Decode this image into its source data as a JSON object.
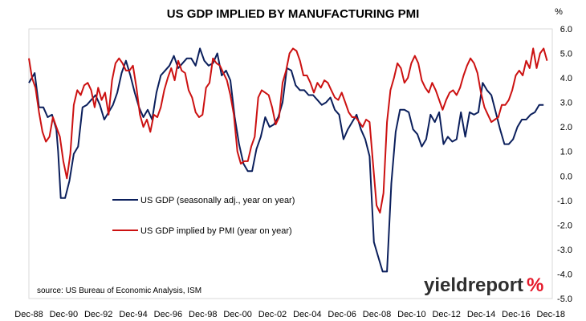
{
  "chart_data": {
    "type": "line",
    "title": "US GDP IMPLIED BY MANUFACTURING PMI",
    "ylabel_unit": "%",
    "ylim": [
      -5.0,
      6.0
    ],
    "yticks": [
      "6.0",
      "5.0",
      "4.0",
      "3.0",
      "2.0",
      "1.0",
      "0.0",
      "-1.0",
      "-2.0",
      "-3.0",
      "-4.0",
      "-5.0"
    ],
    "yticks_values": [
      6,
      5,
      4,
      3,
      2,
      1,
      0,
      -1,
      -2,
      -3,
      -4,
      -5
    ],
    "xlim": [
      1988.92,
      2019.0
    ],
    "xticks": [
      "Dec-88",
      "Dec-90",
      "Dec-92",
      "Dec-94",
      "Dec-96",
      "Dec-98",
      "Dec-00",
      "Dec-02",
      "Dec-04",
      "Dec-06",
      "Dec-08",
      "Dec-10",
      "Dec-12",
      "Dec-14",
      "Dec-16",
      "Dec-18"
    ],
    "xticks_values": [
      1988.92,
      1990.92,
      1992.92,
      1994.92,
      1996.92,
      1998.92,
      2000.92,
      2002.92,
      2004.92,
      2006.92,
      2008.92,
      2010.92,
      2012.92,
      2014.92,
      2016.92,
      2018.92
    ],
    "grid": false,
    "legend_position": "lower-left",
    "series": [
      {
        "name": "US GDP (seasonally adj., year on year)",
        "color": "#0b1f5c",
        "x": [
          1988.92,
          1989.25,
          1989.5,
          1989.75,
          1990.0,
          1990.25,
          1990.5,
          1990.6,
          1990.75,
          1991.0,
          1991.25,
          1991.5,
          1991.75,
          1992.0,
          1992.25,
          1992.5,
          1992.75,
          1993.0,
          1993.25,
          1993.5,
          1993.75,
          1994.0,
          1994.25,
          1994.5,
          1994.75,
          1995.0,
          1995.25,
          1995.5,
          1995.75,
          1996.0,
          1996.25,
          1996.5,
          1996.75,
          1997.0,
          1997.25,
          1997.5,
          1997.75,
          1998.0,
          1998.25,
          1998.5,
          1998.75,
          1999.0,
          1999.25,
          1999.5,
          1999.75,
          2000.0,
          2000.25,
          2000.5,
          2000.75,
          2001.0,
          2001.25,
          2001.5,
          2001.75,
          2002.0,
          2002.25,
          2002.5,
          2002.75,
          2003.0,
          2003.25,
          2003.5,
          2003.75,
          2004.0,
          2004.25,
          2004.5,
          2004.75,
          2005.0,
          2005.25,
          2005.5,
          2005.75,
          2006.0,
          2006.25,
          2006.5,
          2006.75,
          2007.0,
          2007.25,
          2007.5,
          2007.75,
          2008.0,
          2008.25,
          2008.5,
          2008.75,
          2009.0,
          2009.25,
          2009.5,
          2009.75,
          2010.0,
          2010.25,
          2010.5,
          2010.75,
          2011.0,
          2011.25,
          2011.5,
          2011.75,
          2012.0,
          2012.25,
          2012.5,
          2012.75,
          2013.0,
          2013.25,
          2013.5,
          2013.75,
          2014.0,
          2014.25,
          2014.5,
          2014.75,
          2015.0,
          2015.25,
          2015.5,
          2015.75,
          2016.0,
          2016.25,
          2016.5,
          2016.75,
          2017.0,
          2017.25,
          2017.5,
          2017.75,
          2018.0,
          2018.25,
          2018.5
        ],
        "values": [
          3.8,
          4.2,
          2.8,
          2.8,
          2.4,
          2.5,
          1.9,
          1.0,
          -0.9,
          -0.9,
          -0.2,
          0.9,
          1.2,
          2.8,
          2.9,
          3.1,
          3.3,
          2.9,
          2.3,
          2.6,
          2.9,
          3.4,
          4.2,
          4.7,
          4.1,
          3.4,
          2.8,
          2.4,
          2.7,
          2.3,
          3.4,
          4.1,
          4.3,
          4.5,
          4.9,
          4.4,
          4.6,
          4.8,
          4.8,
          4.5,
          5.2,
          4.7,
          4.5,
          4.6,
          5.0,
          4.1,
          4.3,
          3.9,
          2.4,
          1.3,
          0.5,
          0.2,
          0.2,
          1.1,
          1.6,
          2.4,
          2.0,
          2.1,
          2.4,
          3.0,
          4.4,
          4.3,
          3.7,
          3.5,
          3.5,
          3.3,
          3.3,
          3.1,
          2.9,
          3.0,
          3.2,
          2.7,
          2.5,
          1.5,
          1.9,
          2.2,
          2.5,
          1.9,
          1.5,
          0.8,
          -2.7,
          -3.3,
          -3.9,
          -3.9,
          -0.3,
          1.8,
          2.7,
          2.7,
          2.6,
          1.9,
          1.7,
          1.2,
          1.5,
          2.5,
          2.2,
          2.6,
          1.3,
          1.6,
          1.4,
          1.5,
          2.6,
          1.6,
          2.6,
          2.5,
          2.6,
          3.8,
          3.5,
          3.3,
          2.6,
          1.9,
          1.3,
          1.3,
          1.5,
          2.0,
          2.3,
          2.3,
          2.5,
          2.6,
          2.9,
          2.9
        ]
      },
      {
        "name": "US GDP implied by PMI (year on year)",
        "color": "#cc1111",
        "x": [
          1988.92,
          1989.1,
          1989.3,
          1989.5,
          1989.7,
          1989.9,
          1990.1,
          1990.3,
          1990.5,
          1990.7,
          1990.9,
          1991.1,
          1991.3,
          1991.5,
          1991.7,
          1991.9,
          1992.1,
          1992.3,
          1992.5,
          1992.7,
          1992.9,
          1993.1,
          1993.3,
          1993.5,
          1993.7,
          1993.9,
          1994.1,
          1994.3,
          1994.5,
          1994.7,
          1994.9,
          1995.1,
          1995.3,
          1995.5,
          1995.7,
          1995.9,
          1996.1,
          1996.3,
          1996.5,
          1996.7,
          1996.9,
          1997.1,
          1997.3,
          1997.5,
          1997.7,
          1997.9,
          1998.1,
          1998.3,
          1998.5,
          1998.7,
          1998.9,
          1999.1,
          1999.3,
          1999.5,
          1999.7,
          1999.9,
          2000.1,
          2000.3,
          2000.5,
          2000.7,
          2000.9,
          2001.1,
          2001.3,
          2001.5,
          2001.7,
          2001.9,
          2002.1,
          2002.3,
          2002.5,
          2002.7,
          2002.9,
          2003.1,
          2003.3,
          2003.5,
          2003.7,
          2003.9,
          2004.1,
          2004.3,
          2004.5,
          2004.7,
          2004.9,
          2005.1,
          2005.3,
          2005.5,
          2005.7,
          2005.9,
          2006.1,
          2006.3,
          2006.5,
          2006.7,
          2006.9,
          2007.1,
          2007.3,
          2007.5,
          2007.7,
          2007.9,
          2008.1,
          2008.3,
          2008.5,
          2008.7,
          2008.9,
          2009.1,
          2009.3,
          2009.5,
          2009.7,
          2009.9,
          2010.1,
          2010.3,
          2010.5,
          2010.7,
          2010.9,
          2011.1,
          2011.3,
          2011.5,
          2011.7,
          2011.9,
          2012.1,
          2012.3,
          2012.5,
          2012.7,
          2012.9,
          2013.1,
          2013.3,
          2013.5,
          2013.7,
          2013.9,
          2014.1,
          2014.3,
          2014.5,
          2014.7,
          2014.9,
          2015.1,
          2015.3,
          2015.5,
          2015.7,
          2015.9,
          2016.1,
          2016.3,
          2016.5,
          2016.7,
          2016.9,
          2017.1,
          2017.3,
          2017.5,
          2017.7,
          2017.9,
          2018.1,
          2018.3,
          2018.5,
          2018.7
        ],
        "values": [
          4.8,
          4.0,
          3.6,
          2.6,
          1.8,
          1.4,
          1.6,
          2.4,
          2.0,
          1.6,
          0.6,
          -0.1,
          0.9,
          2.9,
          3.5,
          3.3,
          3.7,
          3.8,
          3.5,
          2.8,
          3.6,
          3.1,
          3.4,
          2.5,
          3.9,
          4.6,
          4.8,
          4.6,
          4.3,
          4.3,
          4.5,
          3.6,
          2.5,
          2.0,
          2.3,
          1.8,
          2.5,
          2.4,
          2.8,
          3.5,
          4.0,
          4.4,
          3.9,
          4.7,
          4.3,
          4.2,
          3.5,
          3.2,
          2.6,
          2.4,
          2.5,
          3.6,
          3.8,
          4.8,
          4.6,
          4.5,
          4.2,
          3.9,
          3.3,
          2.5,
          1.0,
          0.5,
          0.6,
          0.6,
          1.2,
          1.6,
          3.2,
          3.5,
          3.4,
          3.3,
          2.8,
          2.1,
          2.4,
          3.8,
          4.3,
          5.0,
          5.2,
          5.1,
          4.7,
          4.1,
          4.1,
          3.8,
          3.4,
          3.8,
          3.6,
          3.9,
          3.8,
          3.5,
          3.2,
          3.1,
          3.4,
          3.0,
          2.6,
          2.4,
          2.4,
          2.2,
          2.0,
          2.3,
          2.2,
          0.5,
          -1.2,
          -1.5,
          -0.7,
          2.2,
          3.5,
          4.0,
          4.6,
          4.4,
          3.8,
          4.0,
          4.6,
          4.9,
          4.6,
          3.9,
          3.6,
          3.4,
          3.8,
          3.5,
          3.1,
          2.7,
          3.1,
          3.4,
          3.5,
          3.3,
          3.6,
          4.1,
          4.5,
          4.8,
          4.6,
          4.2,
          3.4,
          2.8,
          2.5,
          2.2,
          2.3,
          2.4,
          2.9,
          2.9,
          3.1,
          3.5,
          4.1,
          4.3,
          4.1,
          4.7,
          4.4,
          5.2,
          4.4,
          5.0,
          5.2,
          4.7
        ]
      }
    ],
    "legend": [
      {
        "label": "US GDP (seasonally adj., year on year)",
        "color": "#0b1f5c"
      },
      {
        "label": "US GDP implied by PMI (year on year)",
        "color": "#cc1111"
      }
    ],
    "source": "source: US Bureau of Economic Analysis, ISM"
  },
  "logo": {
    "text_main": "yieldreport",
    "text_symbol": "%"
  }
}
